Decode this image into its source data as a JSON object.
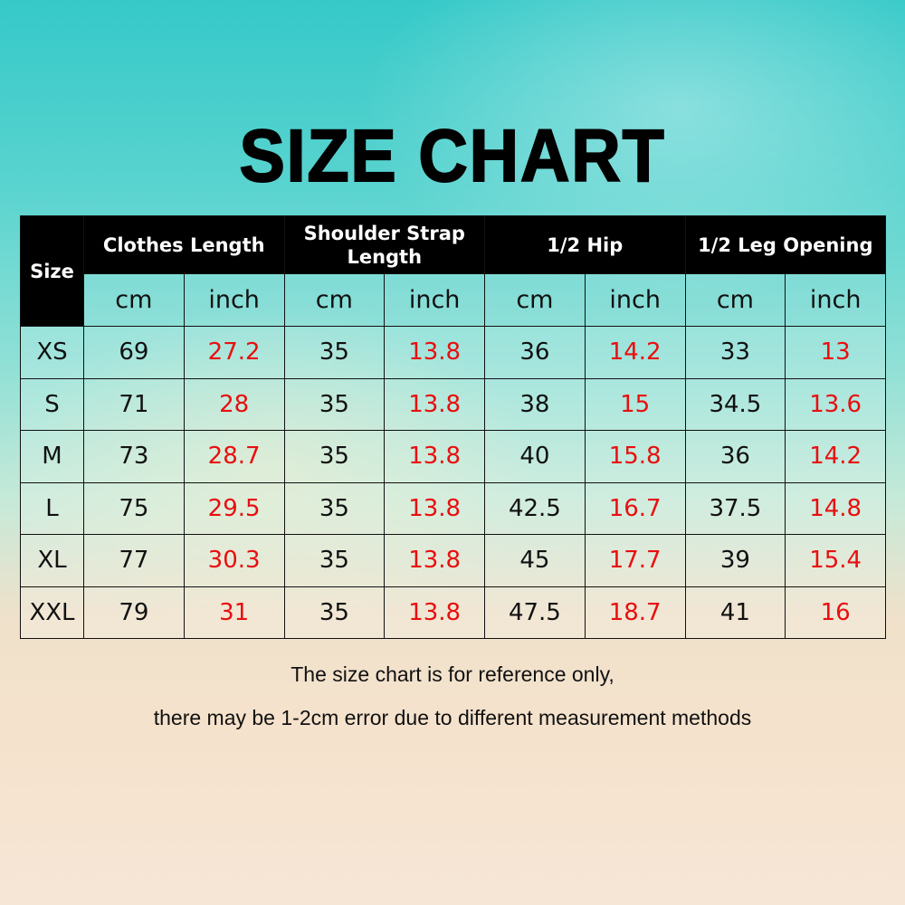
{
  "title": "SIZE CHART",
  "table": {
    "size_header": "Size",
    "groups": [
      "Clothes Length",
      "Shoulder Strap Length",
      "1/2 Hip",
      "1/2 Leg Opening"
    ],
    "units": [
      "cm",
      "inch",
      "cm",
      "inch",
      "cm",
      "inch",
      "cm",
      "inch"
    ],
    "rows": [
      [
        "XS",
        69,
        27.2,
        35,
        13.8,
        36,
        14.2,
        33,
        13
      ],
      [
        "S",
        71,
        28,
        35,
        13.8,
        38,
        15,
        34.5,
        13.6
      ],
      [
        "M",
        73,
        28.7,
        35,
        13.8,
        40,
        15.8,
        36,
        14.2
      ],
      [
        "L",
        75,
        29.5,
        35,
        13.8,
        42.5,
        16.7,
        37.5,
        14.8
      ],
      [
        "XL",
        77,
        30.3,
        35,
        13.8,
        45,
        17.7,
        39,
        15.4
      ],
      [
        "XXL",
        79,
        31,
        35,
        13.8,
        47.5,
        18.7,
        41,
        16
      ]
    ]
  },
  "note": [
    "The size chart is for reference only,",
    "there may be 1-2cm error due to different measurement methods"
  ]
}
